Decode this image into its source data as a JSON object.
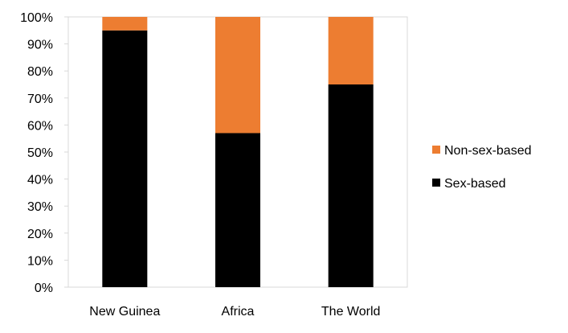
{
  "chart_data": {
    "type": "bar",
    "stacked": true,
    "categories": [
      "New Guinea",
      "Africa",
      "The World"
    ],
    "series": [
      {
        "name": "Sex-based",
        "values": [
          95,
          57,
          75
        ],
        "color": "#000000"
      },
      {
        "name": "Non-sex-based",
        "values": [
          5,
          43,
          25
        ],
        "color": "#ED7D31"
      }
    ],
    "ylim": [
      0,
      100
    ],
    "y_ticks": [
      0,
      10,
      20,
      30,
      40,
      50,
      60,
      70,
      80,
      90,
      100
    ],
    "y_tick_labels": [
      "0%",
      "10%",
      "20%",
      "30%",
      "40%",
      "50%",
      "60%",
      "70%",
      "80%",
      "90%",
      "100%"
    ],
    "grid": false,
    "legend_position": "right",
    "legend_entries": [
      "Non-sex-based",
      "Sex-based"
    ]
  }
}
